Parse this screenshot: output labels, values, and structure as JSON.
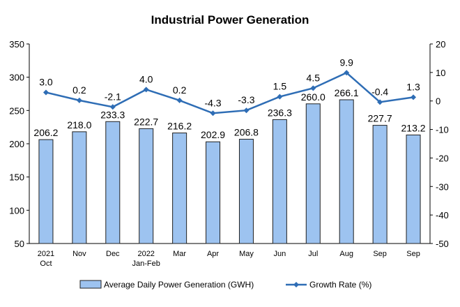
{
  "chart_data": {
    "type": "bar",
    "title": "Industrial Power Generation",
    "categories": [
      [
        "2021",
        "Oct"
      ],
      [
        "Nov"
      ],
      [
        "Dec"
      ],
      [
        "2022",
        "Jan-Feb"
      ],
      [
        "Mar"
      ],
      [
        "Apr"
      ],
      [
        "May"
      ],
      [
        "Jun"
      ],
      [
        "Jul"
      ],
      [
        "Aug"
      ],
      [
        "Sep"
      ],
      [
        "Sep"
      ]
    ],
    "series": [
      {
        "name": "Average Daily Power Generation (GWH)",
        "type": "bar",
        "axis": "left",
        "values": [
          206.2,
          218.0,
          233.3,
          222.7,
          216.2,
          202.9,
          206.8,
          236.3,
          260.0,
          266.1,
          227.7,
          213.2
        ],
        "labels": [
          "206.2",
          "218.0",
          "233.3",
          "222.7",
          "216.2",
          "202.9",
          "206.8",
          "236.3",
          "260.0",
          "266.1",
          "227.7",
          "213.2"
        ],
        "color": "#9dc3f0",
        "stroke": "#1f1f1f"
      },
      {
        "name": "Growth Rate (%)",
        "type": "line",
        "axis": "right",
        "values": [
          3.0,
          0.2,
          -2.1,
          4.0,
          0.2,
          -4.3,
          -3.3,
          1.5,
          4.5,
          9.9,
          -0.4,
          1.3
        ],
        "labels": [
          "3.0",
          "0.2",
          "-2.1",
          "4.0",
          "0.2",
          "-4.3",
          "-3.3",
          "1.5",
          "4.5",
          "9.9",
          "-0.4",
          "1.3"
        ],
        "color": "#2e6db5"
      }
    ],
    "y_left": {
      "min": 50,
      "max": 350,
      "ticks": [
        50,
        100,
        150,
        200,
        250,
        300,
        350
      ]
    },
    "y_right": {
      "min": -50,
      "max": 20,
      "ticks": [
        -50,
        -40,
        -30,
        -20,
        -10,
        0,
        10,
        20
      ]
    },
    "grid": false,
    "legend": "bottom"
  }
}
